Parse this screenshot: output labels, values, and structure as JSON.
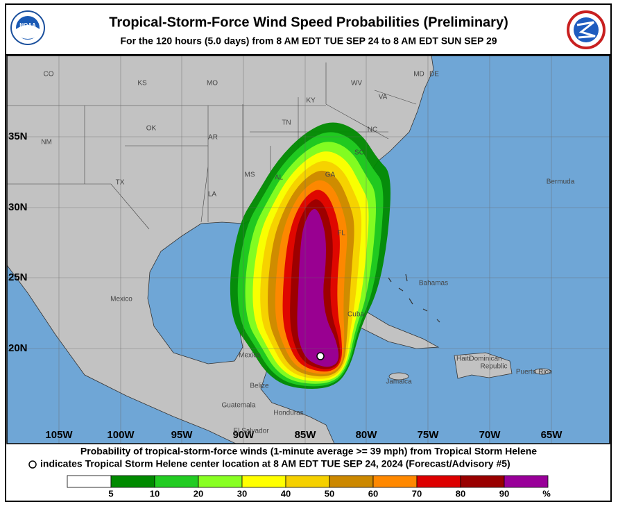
{
  "header": {
    "title": "Tropical-Storm-Force Wind Speed Probabilities (Preliminary)",
    "subtitle": "For the 120 hours (5.0 days) from 8 AM EDT TUE SEP 24 to 8 AM EDT SUN SEP 29",
    "logo_text": "NOAA"
  },
  "map": {
    "lat_labels": [
      "35N",
      "30N",
      "25N",
      "20N"
    ],
    "lon_labels": [
      "105W",
      "100W",
      "95W",
      "90W",
      "85W",
      "80W",
      "75W",
      "70W",
      "65W"
    ],
    "place_labels": [
      "CO",
      "KS",
      "MO",
      "KY",
      "WV",
      "VA",
      "MD",
      "DE",
      "TN",
      "NC",
      "OK",
      "AR",
      "SC",
      "NM",
      "TX",
      "MS",
      "AL",
      "GA",
      "LA",
      "FL",
      "Bermuda",
      "Bahamas",
      "Mexico",
      "Cuba",
      "Mexico",
      "Haiti",
      "Dominican",
      "Republic",
      "Jamaica",
      "Puerto Rico",
      "Belize",
      "Guatemala",
      "Honduras",
      "El Salvador"
    ]
  },
  "caption": {
    "line1": "Probability of tropical-storm-force winds (1-minute average >= 39 mph) from Tropical Storm Helene",
    "line2": "indicates Tropical Storm Helene center location at 8 AM EDT TUE SEP 24, 2024 (Forecast/Advisory #5)"
  },
  "legend": {
    "thresholds": [
      5,
      10,
      20,
      30,
      40,
      50,
      60,
      70,
      80,
      90
    ],
    "unit": "%",
    "colors": [
      "#ffffff",
      "#008a00",
      "#22cc22",
      "#88ff22",
      "#ffff00",
      "#f5d000",
      "#cc8800",
      "#ff8800",
      "#dd0000",
      "#990000",
      "#990099"
    ]
  }
}
